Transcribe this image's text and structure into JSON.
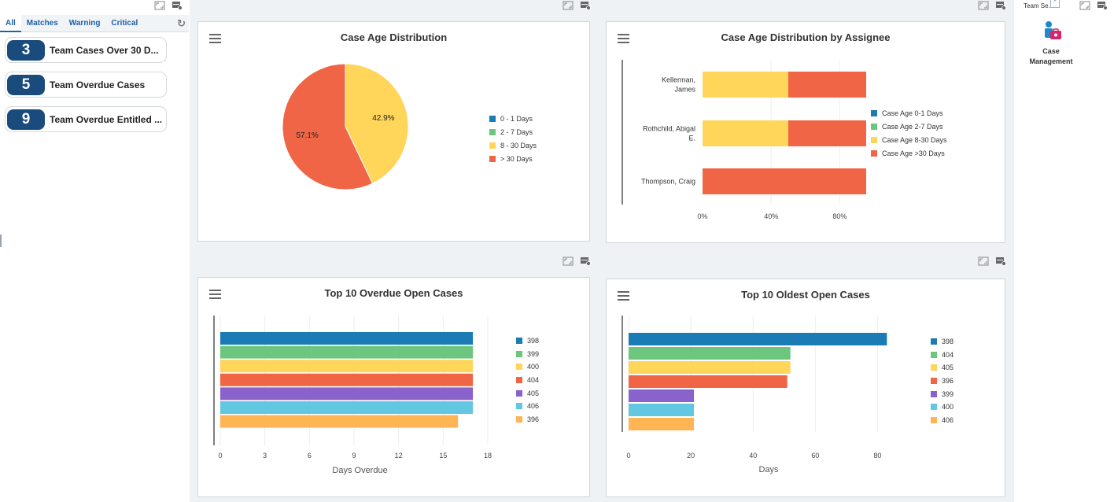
{
  "watchlist": {
    "tabs": [
      "All",
      "Matches",
      "Warning",
      "Critical"
    ],
    "items": [
      {
        "count": "3",
        "label": "Team Cases Over 30 D..."
      },
      {
        "count": "5",
        "label": "Team Overdue Cases"
      },
      {
        "count": "9",
        "label": "Team Overdue Entitled ..."
      }
    ]
  },
  "colors": {
    "blue": "#1a7bb5",
    "green": "#6cc67e",
    "yellow": "#ffd55a",
    "red": "#f06545",
    "purple": "#8a62cc",
    "cyan": "#62c8e2",
    "orange": "#ffb553",
    "badge": "#1a4b7d"
  },
  "chart_data": [
    {
      "type": "pie",
      "title": "Case Age Distribution",
      "categories": [
        "0 - 1 Days",
        "2 - 7 Days",
        "8 - 30 Days",
        "> 30 Days"
      ],
      "values": [
        0,
        0,
        42.9,
        57.1
      ],
      "labels": [
        "",
        "",
        "42.9%",
        "57.1%"
      ],
      "legend": "right"
    },
    {
      "type": "bar",
      "orientation": "horizontal",
      "stacked": true,
      "percent": true,
      "title": "Case Age Distribution by Assignee",
      "categories": [
        [
          "Kellerman,",
          "James"
        ],
        [
          "Rothchild, Abigal",
          "E."
        ],
        [
          "Thompson, Craig"
        ]
      ],
      "series": [
        {
          "name": "Case Age 0-1 Days",
          "values": [
            0,
            0,
            0
          ]
        },
        {
          "name": "Case Age 2-7 Days",
          "values": [
            0,
            0,
            0
          ]
        },
        {
          "name": "Case Age 8-30 Days",
          "values": [
            50,
            50,
            0
          ]
        },
        {
          "name": "Case Age >30 Days",
          "values": [
            50,
            50,
            100
          ]
        }
      ],
      "xticks": [
        "0%",
        "40%",
        "80%"
      ],
      "xlim": [
        0,
        100
      ],
      "legend": "right"
    },
    {
      "type": "bar",
      "orientation": "horizontal",
      "title": "Top 10 Overdue Open Cases",
      "series": [
        {
          "name": "398",
          "value": 17
        },
        {
          "name": "399",
          "value": 17
        },
        {
          "name": "400",
          "value": 17
        },
        {
          "name": "404",
          "value": 17
        },
        {
          "name": "405",
          "value": 17
        },
        {
          "name": "406",
          "value": 17
        },
        {
          "name": "396",
          "value": 16
        }
      ],
      "xlabel": "Days Overdue",
      "xticks": [
        "0",
        "3",
        "6",
        "9",
        "12",
        "15",
        "18"
      ],
      "xlim": [
        0,
        18
      ],
      "legend": "right"
    },
    {
      "type": "bar",
      "orientation": "horizontal",
      "title": "Top 10 Oldest Open Cases",
      "series": [
        {
          "name": "398",
          "value": 83
        },
        {
          "name": "404",
          "value": 52
        },
        {
          "name": "405",
          "value": 52
        },
        {
          "name": "396",
          "value": 51
        },
        {
          "name": "399",
          "value": 21
        },
        {
          "name": "400",
          "value": 21
        },
        {
          "name": "406",
          "value": 21
        }
      ],
      "xlabel": "Days",
      "xticks": [
        "0",
        "20",
        "40",
        "60",
        "80"
      ],
      "xlim": [
        0,
        90
      ],
      "legend": "right"
    }
  ],
  "launchpad": {
    "title": "Team Se...",
    "tile_label_1": "Case",
    "tile_label_2": "Management"
  }
}
